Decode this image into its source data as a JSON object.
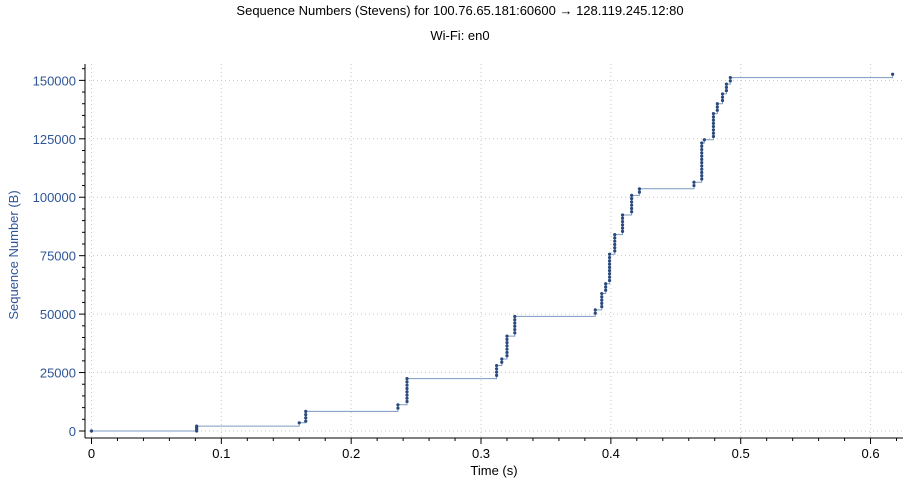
{
  "chart_data": {
    "type": "scatter",
    "title": "Sequence Numbers (Stevens) for 100.76.65.181:60600 → 128.119.245.12:80",
    "subtitle": "Wi-Fi: en0",
    "xlabel": "Time (s)",
    "ylabel": "Sequence Number (B)",
    "xlim": [
      -0.005,
      0.625
    ],
    "ylim": [
      -3000,
      157000
    ],
    "xticks": [
      0,
      0.1,
      0.2,
      0.3,
      0.4,
      0.5,
      0.6
    ],
    "xtick_labels": [
      "0",
      "0.1",
      "0.2",
      "0.3",
      "0.4",
      "0.5",
      "0.6"
    ],
    "yticks": [
      0,
      25000,
      50000,
      75000,
      100000,
      125000,
      150000
    ],
    "ytick_labels": [
      "0",
      "25000",
      "50000",
      "75000",
      "100000",
      "125000",
      "150000"
    ],
    "grid": true,
    "colors": {
      "points": "#2b4a7c",
      "step_line": "#7b9ac0",
      "axis_label": "#2f5597"
    },
    "series": [
      {
        "points": [
          {
            "x": 0.0,
            "y": 0
          },
          {
            "x": 0.081,
            "y": 0
          },
          {
            "x": 0.081,
            "y": 700
          },
          {
            "x": 0.081,
            "y": 1400
          },
          {
            "x": 0.081,
            "y": 2100
          },
          {
            "x": 0.16,
            "y": 3500
          },
          {
            "x": 0.165,
            "y": 4200
          },
          {
            "x": 0.165,
            "y": 5600
          },
          {
            "x": 0.165,
            "y": 7000
          },
          {
            "x": 0.165,
            "y": 8400
          },
          {
            "x": 0.236,
            "y": 9800
          },
          {
            "x": 0.236,
            "y": 11200
          },
          {
            "x": 0.243,
            "y": 12600
          },
          {
            "x": 0.243,
            "y": 14000
          },
          {
            "x": 0.243,
            "y": 15400
          },
          {
            "x": 0.243,
            "y": 16800
          },
          {
            "x": 0.243,
            "y": 18200
          },
          {
            "x": 0.243,
            "y": 19600
          },
          {
            "x": 0.243,
            "y": 21000
          },
          {
            "x": 0.243,
            "y": 22400
          },
          {
            "x": 0.312,
            "y": 23800
          },
          {
            "x": 0.312,
            "y": 25200
          },
          {
            "x": 0.312,
            "y": 26600
          },
          {
            "x": 0.312,
            "y": 28000
          },
          {
            "x": 0.316,
            "y": 29400
          },
          {
            "x": 0.316,
            "y": 30800
          },
          {
            "x": 0.32,
            "y": 32200
          },
          {
            "x": 0.32,
            "y": 33600
          },
          {
            "x": 0.32,
            "y": 35000
          },
          {
            "x": 0.32,
            "y": 36400
          },
          {
            "x": 0.32,
            "y": 37800
          },
          {
            "x": 0.32,
            "y": 39200
          },
          {
            "x": 0.32,
            "y": 40600
          },
          {
            "x": 0.326,
            "y": 42000
          },
          {
            "x": 0.326,
            "y": 43400
          },
          {
            "x": 0.326,
            "y": 44800
          },
          {
            "x": 0.326,
            "y": 46200
          },
          {
            "x": 0.326,
            "y": 47600
          },
          {
            "x": 0.326,
            "y": 49000
          },
          {
            "x": 0.388,
            "y": 50400
          },
          {
            "x": 0.388,
            "y": 51800
          },
          {
            "x": 0.393,
            "y": 53200
          },
          {
            "x": 0.393,
            "y": 54600
          },
          {
            "x": 0.393,
            "y": 56000
          },
          {
            "x": 0.393,
            "y": 57400
          },
          {
            "x": 0.393,
            "y": 58800
          },
          {
            "x": 0.396,
            "y": 60200
          },
          {
            "x": 0.396,
            "y": 61600
          },
          {
            "x": 0.396,
            "y": 63000
          },
          {
            "x": 0.399,
            "y": 64400
          },
          {
            "x": 0.399,
            "y": 65800
          },
          {
            "x": 0.399,
            "y": 67200
          },
          {
            "x": 0.399,
            "y": 68600
          },
          {
            "x": 0.399,
            "y": 70000
          },
          {
            "x": 0.399,
            "y": 71400
          },
          {
            "x": 0.399,
            "y": 72800
          },
          {
            "x": 0.399,
            "y": 74200
          },
          {
            "x": 0.399,
            "y": 75600
          },
          {
            "x": 0.403,
            "y": 77000
          },
          {
            "x": 0.403,
            "y": 78400
          },
          {
            "x": 0.403,
            "y": 79800
          },
          {
            "x": 0.403,
            "y": 81200
          },
          {
            "x": 0.403,
            "y": 82600
          },
          {
            "x": 0.403,
            "y": 84000
          },
          {
            "x": 0.409,
            "y": 85400
          },
          {
            "x": 0.409,
            "y": 86800
          },
          {
            "x": 0.409,
            "y": 88200
          },
          {
            "x": 0.409,
            "y": 89600
          },
          {
            "x": 0.409,
            "y": 91000
          },
          {
            "x": 0.409,
            "y": 92400
          },
          {
            "x": 0.416,
            "y": 93800
          },
          {
            "x": 0.416,
            "y": 95200
          },
          {
            "x": 0.416,
            "y": 96600
          },
          {
            "x": 0.416,
            "y": 98000
          },
          {
            "x": 0.416,
            "y": 99400
          },
          {
            "x": 0.416,
            "y": 100800
          },
          {
            "x": 0.422,
            "y": 102200
          },
          {
            "x": 0.422,
            "y": 103600
          },
          {
            "x": 0.464,
            "y": 105000
          },
          {
            "x": 0.464,
            "y": 106400
          },
          {
            "x": 0.47,
            "y": 107800
          },
          {
            "x": 0.47,
            "y": 109200
          },
          {
            "x": 0.47,
            "y": 110600
          },
          {
            "x": 0.47,
            "y": 112000
          },
          {
            "x": 0.47,
            "y": 113400
          },
          {
            "x": 0.47,
            "y": 114800
          },
          {
            "x": 0.47,
            "y": 116200
          },
          {
            "x": 0.47,
            "y": 117600
          },
          {
            "x": 0.47,
            "y": 119000
          },
          {
            "x": 0.47,
            "y": 120400
          },
          {
            "x": 0.47,
            "y": 121800
          },
          {
            "x": 0.47,
            "y": 123200
          },
          {
            "x": 0.472,
            "y": 124600
          },
          {
            "x": 0.479,
            "y": 126000
          },
          {
            "x": 0.479,
            "y": 127400
          },
          {
            "x": 0.479,
            "y": 128800
          },
          {
            "x": 0.479,
            "y": 130200
          },
          {
            "x": 0.479,
            "y": 131600
          },
          {
            "x": 0.479,
            "y": 133000
          },
          {
            "x": 0.479,
            "y": 134400
          },
          {
            "x": 0.479,
            "y": 135800
          },
          {
            "x": 0.482,
            "y": 137200
          },
          {
            "x": 0.482,
            "y": 138600
          },
          {
            "x": 0.482,
            "y": 140000
          },
          {
            "x": 0.486,
            "y": 141400
          },
          {
            "x": 0.486,
            "y": 142800
          },
          {
            "x": 0.486,
            "y": 144200
          },
          {
            "x": 0.489,
            "y": 145600
          },
          {
            "x": 0.489,
            "y": 147000
          },
          {
            "x": 0.489,
            "y": 148400
          },
          {
            "x": 0.492,
            "y": 149800
          },
          {
            "x": 0.492,
            "y": 151200
          },
          {
            "x": 0.617,
            "y": 152600
          }
        ],
        "step_line": [
          [
            0.0,
            0
          ],
          [
            0.081,
            0
          ],
          [
            0.081,
            2100
          ],
          [
            0.16,
            2100
          ],
          [
            0.16,
            3500
          ],
          [
            0.165,
            3500
          ],
          [
            0.165,
            8400
          ],
          [
            0.236,
            8400
          ],
          [
            0.236,
            11200
          ],
          [
            0.243,
            11200
          ],
          [
            0.243,
            22400
          ],
          [
            0.312,
            22400
          ],
          [
            0.312,
            28000
          ],
          [
            0.316,
            28000
          ],
          [
            0.316,
            30800
          ],
          [
            0.32,
            30800
          ],
          [
            0.32,
            40600
          ],
          [
            0.326,
            40600
          ],
          [
            0.326,
            49000
          ],
          [
            0.388,
            49000
          ],
          [
            0.388,
            51800
          ],
          [
            0.393,
            51800
          ],
          [
            0.393,
            58800
          ],
          [
            0.396,
            58800
          ],
          [
            0.396,
            63000
          ],
          [
            0.399,
            63000
          ],
          [
            0.399,
            75600
          ],
          [
            0.403,
            75600
          ],
          [
            0.403,
            84000
          ],
          [
            0.409,
            84000
          ],
          [
            0.409,
            92400
          ],
          [
            0.416,
            92400
          ],
          [
            0.416,
            100800
          ],
          [
            0.422,
            100800
          ],
          [
            0.422,
            103600
          ],
          [
            0.464,
            103600
          ],
          [
            0.464,
            106400
          ],
          [
            0.47,
            106400
          ],
          [
            0.47,
            123200
          ],
          [
            0.472,
            123200
          ],
          [
            0.472,
            124600
          ],
          [
            0.479,
            124600
          ],
          [
            0.479,
            135800
          ],
          [
            0.482,
            135800
          ],
          [
            0.482,
            140000
          ],
          [
            0.486,
            140000
          ],
          [
            0.486,
            144200
          ],
          [
            0.489,
            144200
          ],
          [
            0.489,
            148400
          ],
          [
            0.492,
            148400
          ],
          [
            0.492,
            151200
          ],
          [
            0.617,
            151200
          ],
          [
            0.617,
            152600
          ]
        ]
      }
    ]
  }
}
